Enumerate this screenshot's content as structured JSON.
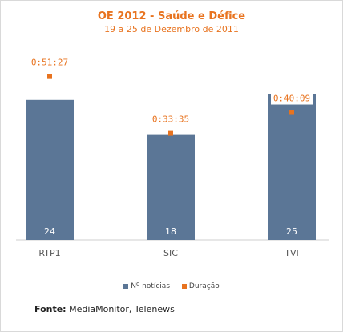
{
  "chart_data": {
    "type": "bar",
    "title": "OE 2012 - Saúde e Défice",
    "subtitle": "19 a 25 de Dezembro de 2011",
    "categories": [
      "RTP1",
      "SIC",
      "TVI"
    ],
    "series": [
      {
        "name": "Nº notícias",
        "kind": "bar",
        "values": [
          24,
          18,
          25
        ],
        "color": "#5b7696"
      },
      {
        "name": "Duração",
        "kind": "point",
        "values": [
          "0:51:27",
          "0:33:35",
          "0:40:09"
        ],
        "seconds": [
          3087,
          2015,
          2409
        ],
        "color": "#e8731f"
      }
    ],
    "ylim_bars": [
      0,
      27
    ],
    "ylim_duration_seconds": [
      0,
      3900
    ],
    "grid": false,
    "legend_position": "bottom"
  },
  "source": {
    "label": "Fonte:",
    "text": "MediaMonitor, Telenews"
  }
}
